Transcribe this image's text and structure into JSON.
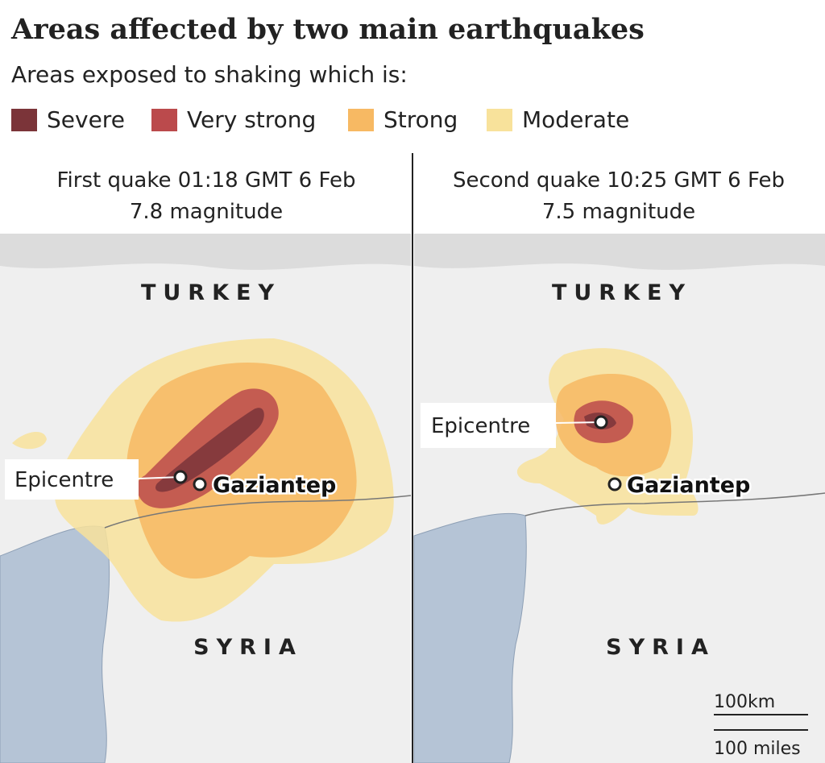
{
  "title": "Areas affected by two main earthquakes",
  "subtitle": "Areas exposed to shaking which is:",
  "legend": [
    {
      "label": "Severe",
      "color": "#7b3439"
    },
    {
      "label": "Very strong",
      "color": "#bb4a4c"
    },
    {
      "label": "Strong",
      "color": "#f7b963"
    },
    {
      "label": "Moderate",
      "color": "#f8e29b"
    }
  ],
  "panels": [
    {
      "heading": [
        "First quake 01:18 GMT 6 Feb",
        "7.8 magnitude"
      ],
      "countries": [
        "TURKEY",
        "SYRIA"
      ],
      "epicentre": "Epicentre",
      "city": "Gaziantep"
    },
    {
      "heading": [
        "Second quake 10:25 GMT 6 Feb",
        "7.5 magnitude"
      ],
      "countries": [
        "TURKEY",
        "SYRIA"
      ],
      "epicentre": "Epicentre",
      "city": "Gaziantep"
    }
  ],
  "scale": [
    "100km",
    "100 miles"
  ]
}
